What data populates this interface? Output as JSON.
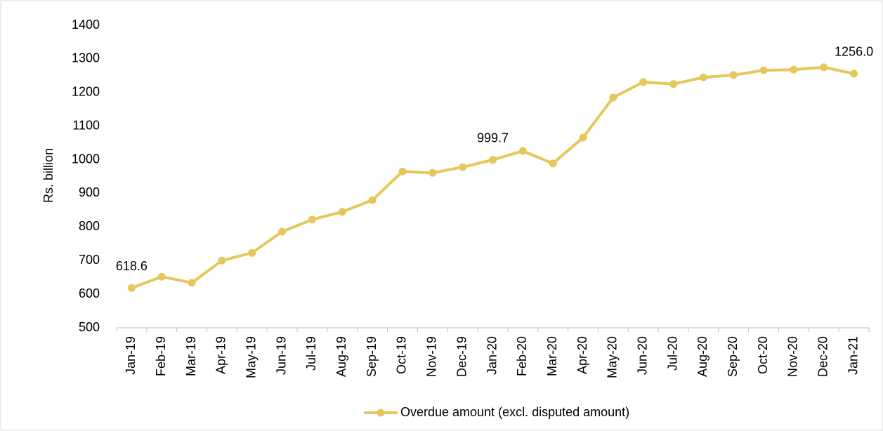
{
  "chart_data": {
    "type": "line",
    "y_label": "Rs.  billion",
    "categories": [
      "Jan-19",
      "Feb-19",
      "Mar-19",
      "Apr-19",
      "May-19",
      "Jun-19",
      "Jul-19",
      "Aug-19",
      "Sep-19",
      "Oct-19",
      "Nov-19",
      "Dec-19",
      "Jan-20",
      "Feb-20",
      "Mar-20",
      "Apr-20",
      "May-20",
      "Jun-20",
      "Jul-20",
      "Aug-20",
      "Sep-20",
      "Oct-20",
      "Nov-20",
      "Dec-20",
      "Jan-21"
    ],
    "series": [
      {
        "name": "Overdue amount (excl. disputed amount)",
        "color": "#e6c75c",
        "values": [
          618.6,
          652,
          634,
          700,
          723,
          786,
          822,
          845,
          880,
          965,
          961,
          978,
          999.7,
          1026,
          989,
          1066,
          1185,
          1231,
          1225,
          1245,
          1252,
          1266,
          1268,
          1275,
          1256.0
        ],
        "value_labels": [
          "618.6",
          null,
          null,
          null,
          null,
          null,
          null,
          null,
          null,
          null,
          null,
          null,
          "999.7",
          null,
          null,
          null,
          null,
          null,
          null,
          null,
          null,
          null,
          null,
          null,
          "1256.0"
        ]
      }
    ],
    "ylim": [
      500,
      1400
    ],
    "yticks": [
      500,
      600,
      700,
      800,
      900,
      1000,
      1100,
      1200,
      1300,
      1400
    ],
    "grid": false,
    "legend": "bottom"
  }
}
